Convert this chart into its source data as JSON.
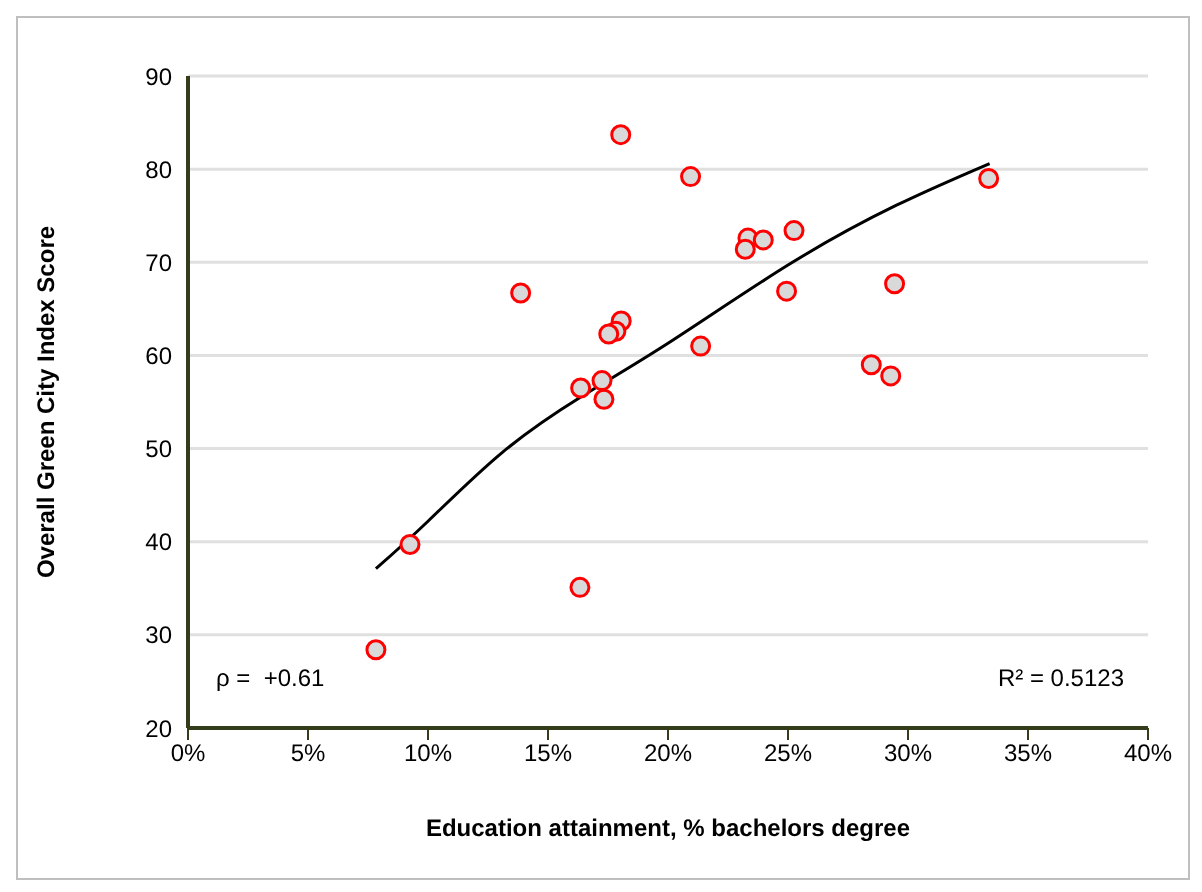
{
  "chart_data": {
    "type": "scatter",
    "xlabel": "Education attainment, % bachelors degree",
    "ylabel": "Overall Green City Index Score",
    "series": [
      {
        "color": "#ff0000",
        "x": [
          7.83,
          9.25,
          13.86,
          18.03,
          18.05,
          17.83,
          17.53,
          16.36,
          17.25,
          17.33,
          16.33,
          20.94,
          21.36,
          23.33,
          23.22,
          23.97,
          25.25,
          24.94,
          29.44,
          28.47,
          29.28,
          33.36
        ],
        "values": [
          28.4,
          39.7,
          66.7,
          83.7,
          63.7,
          62.6,
          62.3,
          56.5,
          57.3,
          55.3,
          35.1,
          79.2,
          61.0,
          72.6,
          71.4,
          72.4,
          73.4,
          66.9,
          67.7,
          59.0,
          57.8,
          79.0
        ]
      },
      {
        "type": "line",
        "color": "#000000",
        "marker": "none",
        "x": [
          7.83,
          10,
          13.1,
          16.4,
          20,
          25,
          29.5,
          33.4
        ],
        "values": [
          37.1,
          42.2,
          49.6,
          55.6,
          61.3,
          69.7,
          76.1,
          80.6
        ]
      }
    ],
    "xlim": [
      0,
      40
    ],
    "xticks": [
      {
        "value": 0,
        "label": "0%"
      },
      {
        "value": 5,
        "label": "5%"
      },
      {
        "value": 10,
        "label": "10%"
      },
      {
        "value": 15,
        "label": "15%"
      },
      {
        "value": 20,
        "label": "20%"
      },
      {
        "value": 25,
        "label": "25%"
      },
      {
        "value": 30,
        "label": "30%"
      },
      {
        "value": 35,
        "label": "35%"
      },
      {
        "value": 40,
        "label": "40%"
      }
    ],
    "ylim": [
      20,
      90
    ],
    "yticks": [
      20,
      30,
      40,
      50,
      60,
      70,
      80,
      90
    ],
    "grid": "y",
    "legend": false,
    "marker": "circle",
    "line_style": "solid",
    "annotations": [
      "ρ =  +0.61",
      "R² = 0.5123"
    ]
  }
}
